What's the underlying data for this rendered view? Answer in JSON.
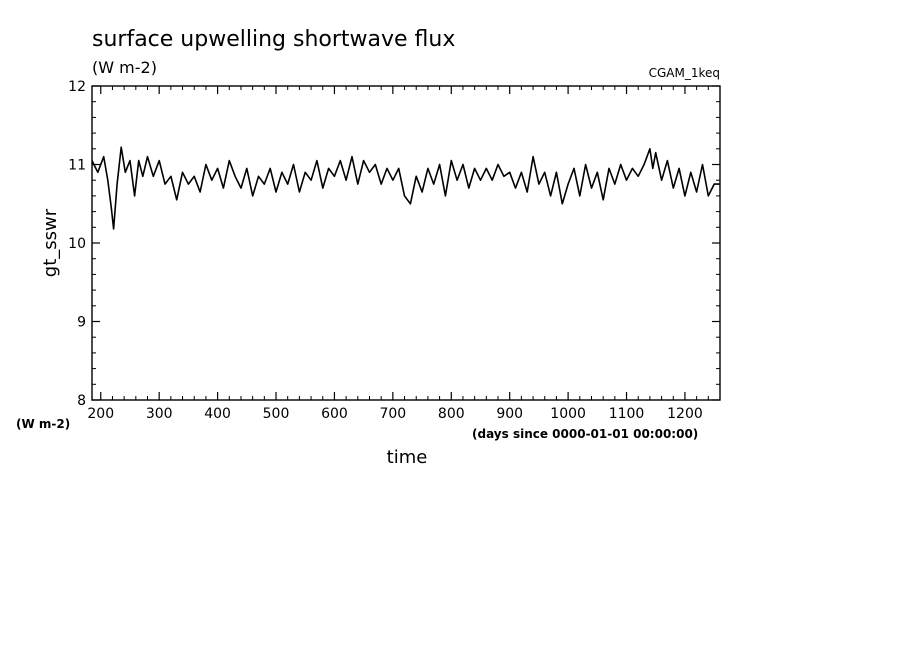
{
  "chart_data": {
    "type": "line",
    "title": "surface upwelling shortwave flux",
    "title_units": "(W m-2)",
    "run_label": "CGAM_1keq",
    "xlabel": "time",
    "x_units": "(days since 0000-01-01 00:00:00)",
    "ylabel": "gt_sswr",
    "y_units": "(W m-2)",
    "xlim": [
      185,
      1260
    ],
    "ylim": [
      8,
      12
    ],
    "x_ticks": [
      200,
      300,
      400,
      500,
      600,
      700,
      800,
      900,
      1000,
      1100,
      1200
    ],
    "y_ticks": [
      8,
      9,
      10,
      11,
      12
    ],
    "grid": false,
    "series_color": "#000000",
    "x": [
      185,
      195,
      205,
      212,
      218,
      222,
      228,
      235,
      242,
      250,
      258,
      265,
      272,
      280,
      290,
      300,
      310,
      320,
      330,
      340,
      350,
      360,
      370,
      380,
      390,
      400,
      410,
      420,
      430,
      440,
      450,
      460,
      470,
      480,
      490,
      500,
      510,
      520,
      530,
      540,
      550,
      560,
      570,
      580,
      590,
      600,
      610,
      620,
      630,
      640,
      650,
      660,
      670,
      680,
      690,
      700,
      710,
      720,
      730,
      740,
      750,
      760,
      770,
      780,
      790,
      800,
      810,
      820,
      830,
      840,
      850,
      860,
      870,
      880,
      890,
      900,
      910,
      920,
      930,
      940,
      950,
      960,
      970,
      980,
      990,
      1000,
      1010,
      1020,
      1030,
      1040,
      1050,
      1060,
      1070,
      1080,
      1090,
      1100,
      1110,
      1120,
      1130,
      1140,
      1145,
      1150,
      1160,
      1170,
      1180,
      1190,
      1200,
      1210,
      1220,
      1230,
      1240,
      1250,
      1260
    ],
    "y": [
      11.05,
      10.9,
      11.1,
      10.8,
      10.45,
      10.18,
      10.75,
      11.22,
      10.9,
      11.05,
      10.6,
      11.05,
      10.85,
      11.1,
      10.85,
      11.05,
      10.75,
      10.85,
      10.55,
      10.9,
      10.75,
      10.85,
      10.65,
      11.0,
      10.8,
      10.95,
      10.7,
      11.05,
      10.85,
      10.7,
      10.95,
      10.6,
      10.85,
      10.75,
      10.95,
      10.65,
      10.9,
      10.75,
      11.0,
      10.65,
      10.9,
      10.8,
      11.05,
      10.7,
      10.95,
      10.85,
      11.05,
      10.8,
      11.1,
      10.75,
      11.05,
      10.9,
      11.0,
      10.75,
      10.95,
      10.8,
      10.95,
      10.6,
      10.5,
      10.85,
      10.65,
      10.95,
      10.75,
      11.0,
      10.6,
      11.05,
      10.8,
      11.0,
      10.7,
      10.95,
      10.8,
      10.95,
      10.8,
      11.0,
      10.85,
      10.9,
      10.7,
      10.9,
      10.65,
      11.1,
      10.75,
      10.9,
      10.6,
      10.9,
      10.5,
      10.75,
      10.95,
      10.6,
      11.0,
      10.7,
      10.9,
      10.55,
      10.95,
      10.75,
      11.0,
      10.8,
      10.95,
      10.85,
      11.0,
      11.2,
      10.95,
      11.15,
      10.8,
      11.05,
      10.7,
      10.95,
      10.6,
      10.9,
      10.65,
      11.0,
      10.6,
      10.75,
      10.75
    ]
  }
}
